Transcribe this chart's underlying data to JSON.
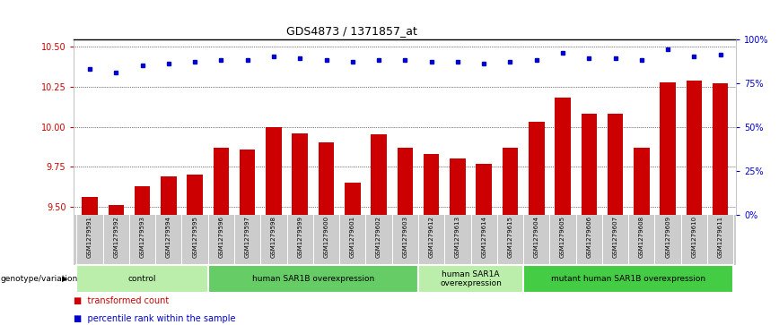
{
  "title": "GDS4873 / 1371857_at",
  "samples": [
    "GSM1279591",
    "GSM1279592",
    "GSM1279593",
    "GSM1279594",
    "GSM1279595",
    "GSM1279596",
    "GSM1279597",
    "GSM1279598",
    "GSM1279599",
    "GSM1279600",
    "GSM1279601",
    "GSM1279602",
    "GSM1279603",
    "GSM1279612",
    "GSM1279613",
    "GSM1279614",
    "GSM1279615",
    "GSM1279604",
    "GSM1279605",
    "GSM1279606",
    "GSM1279607",
    "GSM1279608",
    "GSM1279609",
    "GSM1279610",
    "GSM1279611"
  ],
  "bar_values": [
    9.56,
    9.51,
    9.63,
    9.69,
    9.7,
    9.87,
    9.86,
    10.0,
    9.96,
    9.9,
    9.65,
    9.95,
    9.87,
    9.83,
    9.8,
    9.77,
    9.87,
    10.03,
    10.18,
    10.08,
    10.08,
    9.87,
    10.28,
    10.29,
    10.27
  ],
  "percentile_values": [
    83,
    81,
    85,
    86,
    87,
    88,
    88,
    90,
    89,
    88,
    87,
    88,
    88,
    87,
    87,
    86,
    87,
    88,
    92,
    89,
    89,
    88,
    94,
    90,
    91
  ],
  "ylim_left": [
    9.45,
    10.55
  ],
  "ylim_right": [
    0,
    100
  ],
  "yticks_left": [
    9.5,
    9.75,
    10.0,
    10.25,
    10.5
  ],
  "yticks_right": [
    0,
    25,
    50,
    75,
    100
  ],
  "bar_color": "#cc0000",
  "dot_color": "#0000cc",
  "groups": [
    {
      "label": "control",
      "start": 0,
      "end": 5,
      "color": "#bbeeaa"
    },
    {
      "label": "human SAR1B overexpression",
      "start": 5,
      "end": 13,
      "color": "#66cc66"
    },
    {
      "label": "human SAR1A\noverexpression",
      "start": 13,
      "end": 17,
      "color": "#bbeeaa"
    },
    {
      "label": "mutant human SAR1B overexpression",
      "start": 17,
      "end": 25,
      "color": "#44cc44"
    }
  ],
  "genotype_label": "genotype/variation",
  "legend_bar_label": "transformed count",
  "legend_dot_label": "percentile rank within the sample",
  "background_color": "#ffffff",
  "plot_bg_color": "#ffffff",
  "tick_area_color": "#cccccc"
}
